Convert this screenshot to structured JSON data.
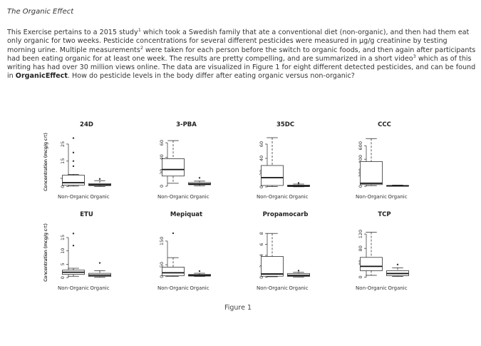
{
  "page": {
    "title": "The Organic Effect",
    "paragraph": {
      "p1": "This Exercise pertains to a 2015 study",
      "s1": "1",
      "p2": " which took a Swedish family that ate a conventional diet (non-organic), and then had them eat only organic for two weeks. Pesticide concentrations for several different pesticides were measured in µg/g creatinine by testing morning urine. Multiple measurements",
      "s2": "2",
      "p3": " were taken for each person before the switch to organic foods, and then again after participants had been eating organic for at least one week. The results are pretty compelling, and are summarized in a short video",
      "s3": "3",
      "p4": " which as of this writing has had over 30 million views online. The data are visualized in Figure 1 for eight different detected pesticides, and can be found in ",
      "dataset": "OrganicEffect",
      "p5": ". How do pesticide levels in the body differ after eating organic versus non-organic?"
    },
    "figure_caption": "Figure 1"
  },
  "chart_data": [
    {
      "type": "box",
      "title": "24D",
      "categories": [
        "Non-Organic",
        "Organic"
      ],
      "ylabel": "Concentration (mcg/g crt)",
      "yticks": [
        0,
        5,
        15,
        25
      ],
      "ylim": [
        -1,
        30
      ],
      "boxes": [
        {
          "min": 0.3,
          "q1": 0.9,
          "median": 2.3,
          "q3": 6.7,
          "max": 7.2,
          "outliers": [
            12,
            15,
            20,
            28.5
          ]
        },
        {
          "min": 0.1,
          "q1": 0.6,
          "median": 1.1,
          "q3": 1.8,
          "max": 3.5,
          "outliers": [
            4.5
          ]
        }
      ]
    },
    {
      "type": "box",
      "title": "3-PBA",
      "categories": [
        "Non-Organic",
        "Organic"
      ],
      "ylabel": "Concentration (mcg/g crt)",
      "yticks": [
        0,
        20,
        40,
        60
      ],
      "ylim": [
        -3,
        70
      ],
      "boxes": [
        {
          "min": 4,
          "q1": 14,
          "median": 23,
          "q3": 38,
          "max": 63,
          "outliers": []
        },
        {
          "min": 0.5,
          "q1": 2,
          "median": 3,
          "q3": 5,
          "max": 7,
          "outliers": [
            11.5
          ]
        }
      ]
    },
    {
      "type": "box",
      "title": "35DC",
      "categories": [
        "Non-Organic",
        "Organic"
      ],
      "ylabel": "Concentration (mcg/g crt)",
      "yticks": [
        0,
        20,
        40,
        60
      ],
      "ylim": [
        -2,
        72
      ],
      "boxes": [
        {
          "min": 0.5,
          "q1": 2,
          "median": 13,
          "q3": 30,
          "max": 69,
          "outliers": []
        },
        {
          "min": 0.2,
          "q1": 0.6,
          "median": 1.2,
          "q3": 2.5,
          "max": 4,
          "outliers": [
            5.5
          ]
        }
      ]
    },
    {
      "type": "box",
      "title": "CCC",
      "categories": [
        "Non-Organic",
        "Organic"
      ],
      "ylabel": "Concentration (mcg/g crt)",
      "yticks": [
        0,
        200,
        400,
        600
      ],
      "ylim": [
        -30,
        750
      ],
      "boxes": [
        {
          "min": 10,
          "q1": 25,
          "median": 45,
          "q3": 365,
          "max": 705,
          "outliers": []
        },
        {
          "min": 1,
          "q1": 3,
          "median": 6,
          "q3": 12,
          "max": 18,
          "outliers": []
        }
      ]
    },
    {
      "type": "box",
      "title": "ETU",
      "categories": [
        "Non-Organic",
        "Organic"
      ],
      "ylabel": "Concentration (mcg/g crt)",
      "yticks": [
        0,
        5,
        10,
        15
      ],
      "ylim": [
        -0.5,
        19
      ],
      "boxes": [
        {
          "min": 0.5,
          "q1": 1.2,
          "median": 2,
          "q3": 2.8,
          "max": 3.5,
          "outliers": [
            12,
            16.5
          ]
        },
        {
          "min": 0.1,
          "q1": 0.4,
          "median": 0.9,
          "q3": 1.6,
          "max": 2.6,
          "outliers": [
            5.5
          ]
        }
      ]
    },
    {
      "type": "box",
      "title": "Mepiquat",
      "categories": [
        "Non-Organic",
        "Organic"
      ],
      "ylabel": "Concentration (mcg/g crt)",
      "yticks": [
        0,
        50,
        150
      ],
      "ylim": [
        -10,
        210
      ],
      "boxes": [
        {
          "min": 1,
          "q1": 4,
          "median": 16,
          "q3": 40,
          "max": 80,
          "outliers": [
            183
          ]
        },
        {
          "min": 0.5,
          "q1": 2,
          "median": 5,
          "q3": 9,
          "max": 14,
          "outliers": [
            23
          ]
        }
      ]
    },
    {
      "type": "box",
      "title": "Propamocarb",
      "categories": [
        "Non-Organic",
        "Organic"
      ],
      "ylabel": "Concentration (mcg/g crt)",
      "yticks": [
        0,
        2,
        4,
        6,
        8
      ],
      "ylim": [
        -0.3,
        9.2
      ],
      "boxes": [
        {
          "min": 0.1,
          "q1": 0.2,
          "median": 0.6,
          "q3": 3.8,
          "max": 8,
          "outliers": []
        },
        {
          "min": 0.05,
          "q1": 0.15,
          "median": 0.35,
          "q3": 0.7,
          "max": 0.9,
          "outliers": [
            1.2
          ]
        }
      ]
    },
    {
      "type": "box",
      "title": "TCP",
      "categories": [
        "Non-Organic",
        "Organic"
      ],
      "ylabel": "Concentration (mcg/g crt)",
      "yticks": [
        0,
        40,
        80,
        120
      ],
      "ylim": [
        -5,
        140
      ],
      "boxes": [
        {
          "min": 5,
          "q1": 18,
          "median": 30,
          "q3": 55,
          "max": 125,
          "outliers": []
        },
        {
          "min": 2,
          "q1": 4,
          "median": 10,
          "q3": 18,
          "max": 26,
          "outliers": [
            35
          ]
        }
      ]
    }
  ]
}
